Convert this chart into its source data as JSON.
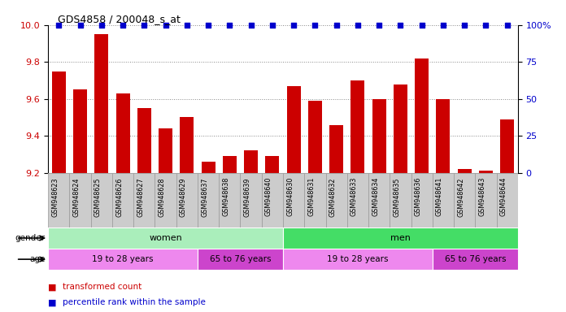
{
  "title": "GDS4858 / 200048_s_at",
  "samples": [
    "GSM948623",
    "GSM948624",
    "GSM948625",
    "GSM948626",
    "GSM948627",
    "GSM948628",
    "GSM948629",
    "GSM948637",
    "GSM948638",
    "GSM948639",
    "GSM948640",
    "GSM948630",
    "GSM948631",
    "GSM948632",
    "GSM948633",
    "GSM948634",
    "GSM948635",
    "GSM948636",
    "GSM948641",
    "GSM948642",
    "GSM948643",
    "GSM948644"
  ],
  "bar_values": [
    9.75,
    9.65,
    9.95,
    9.63,
    9.55,
    9.44,
    9.5,
    9.26,
    9.29,
    9.32,
    9.29,
    9.67,
    9.59,
    9.46,
    9.7,
    9.6,
    9.68,
    9.82,
    9.6,
    9.22,
    9.21,
    9.49
  ],
  "percentile_values": [
    100,
    100,
    100,
    100,
    100,
    100,
    100,
    100,
    100,
    100,
    100,
    100,
    100,
    100,
    100,
    100,
    100,
    100,
    100,
    100,
    100,
    100
  ],
  "ylim_left": [
    9.2,
    10.0
  ],
  "ylim_right": [
    0,
    100
  ],
  "yticks_left": [
    9.2,
    9.4,
    9.6,
    9.8,
    10.0
  ],
  "yticks_right": [
    0,
    25,
    50,
    75,
    100
  ],
  "bar_color": "#cc0000",
  "percentile_color": "#0000cc",
  "bar_width": 0.65,
  "gender_groups": [
    {
      "label": "women",
      "start": 0,
      "end": 11,
      "color": "#aaeebb"
    },
    {
      "label": "men",
      "start": 11,
      "end": 22,
      "color": "#44dd66"
    }
  ],
  "age_groups": [
    {
      "label": "19 to 28 years",
      "start": 0,
      "end": 7,
      "color": "#ee88ee"
    },
    {
      "label": "65 to 76 years",
      "start": 7,
      "end": 11,
      "color": "#cc44cc"
    },
    {
      "label": "19 to 28 years",
      "start": 11,
      "end": 18,
      "color": "#ee88ee"
    },
    {
      "label": "65 to 76 years",
      "start": 18,
      "end": 22,
      "color": "#cc44cc"
    }
  ],
  "legend_items": [
    {
      "label": "transformed count",
      "color": "#cc0000"
    },
    {
      "label": "percentile rank within the sample",
      "color": "#0000cc"
    }
  ],
  "gender_label": "gender",
  "age_label": "age",
  "bg_color": "#ffffff",
  "grid_color": "#888888",
  "tick_label_color_left": "#cc0000",
  "tick_label_color_right": "#0000cc",
  "sample_bg_color": "#cccccc",
  "sample_border_color": "#999999"
}
